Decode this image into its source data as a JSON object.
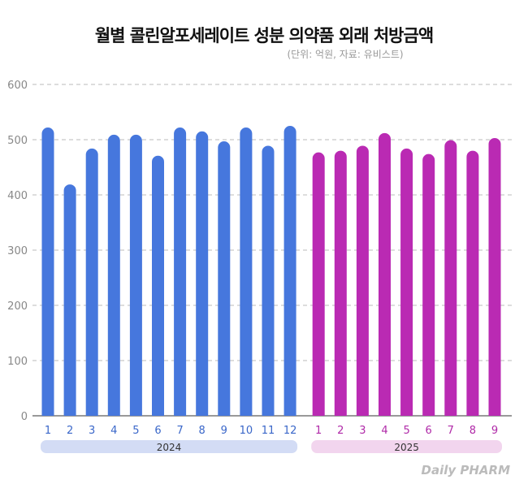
{
  "chart_data": {
    "type": "bar",
    "title": "월별 콜린알포세레이트 성분 의약품 외래 처방금액",
    "subtitle": "(단위: 억원, 자료: 유비스트)",
    "ylim": [
      0,
      600
    ],
    "yticks": [
      0,
      100,
      200,
      300,
      400,
      500,
      600
    ],
    "grid": true,
    "groups": [
      {
        "name": "2024",
        "color": "#4677DD",
        "band_color": "#D3DCF5",
        "label_color": "#3A67C9",
        "categories": [
          "1",
          "2",
          "3",
          "4",
          "5",
          "6",
          "7",
          "8",
          "9",
          "10",
          "11",
          "12"
        ],
        "values": [
          522,
          419,
          484,
          509,
          509,
          471,
          522,
          515,
          497,
          522,
          489,
          525
        ]
      },
      {
        "name": "2025",
        "color": "#BA2AB3",
        "band_color": "#F2D5EE",
        "label_color": "#B02AA8",
        "categories": [
          "1",
          "2",
          "3",
          "4",
          "5",
          "6",
          "7",
          "8",
          "9"
        ],
        "values": [
          477,
          480,
          489,
          512,
          484,
          474,
          499,
          480,
          503
        ]
      }
    ]
  },
  "logo": "Daily PHARM"
}
